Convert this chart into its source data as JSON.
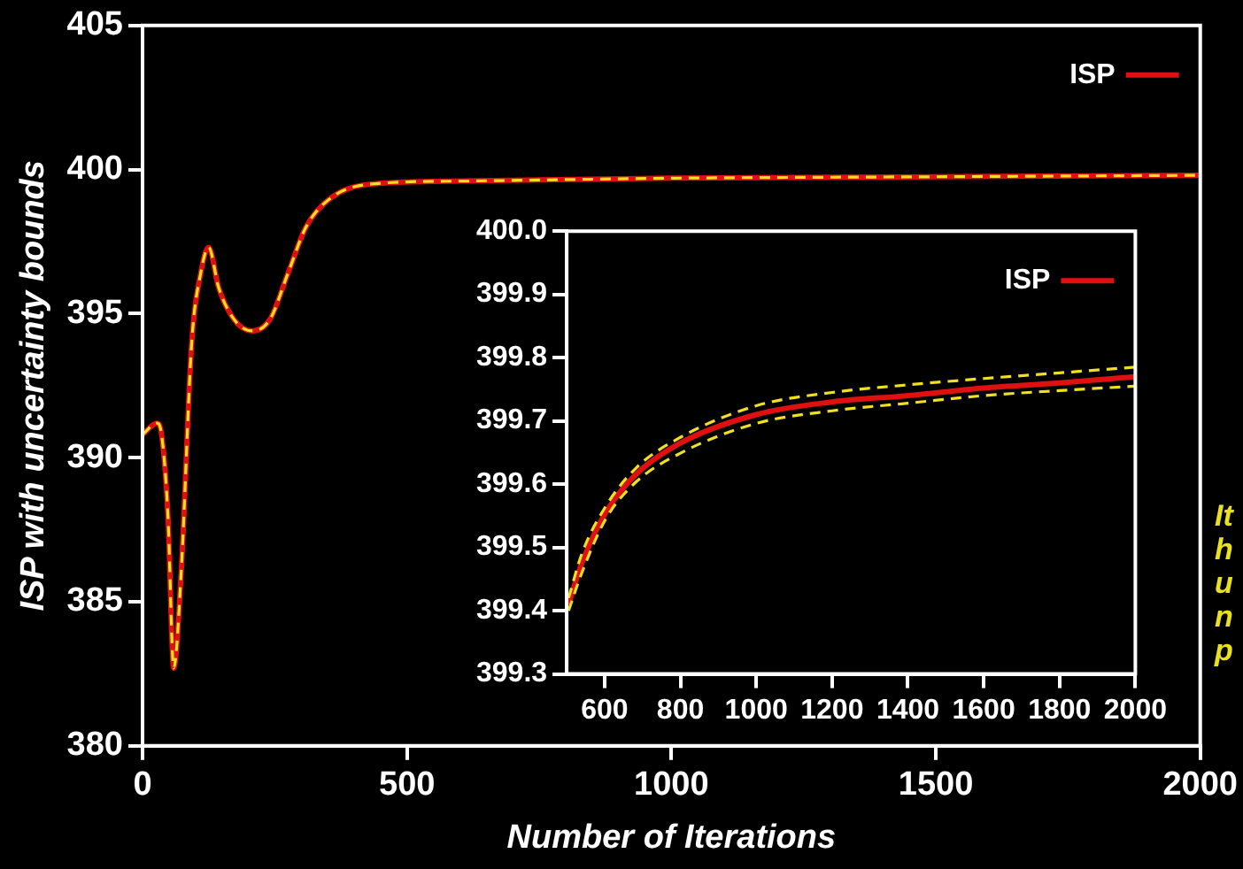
{
  "chart_data": [
    {
      "type": "line",
      "xlabel": "Number of Iterations",
      "ylabel": "ISP with uncertainty bounds",
      "xlim": [
        0,
        2000
      ],
      "ylim": [
        380,
        405
      ],
      "xticks": [
        0,
        500,
        1000,
        1500,
        2000
      ],
      "yticks": [
        380,
        385,
        390,
        395,
        400,
        405
      ],
      "grid": false,
      "legend": "top right",
      "marker": "none",
      "x": [
        0,
        27,
        36,
        48,
        59,
        73,
        93,
        110,
        125,
        144,
        173,
        207,
        241,
        275,
        309,
        355,
        434,
        604,
        1000,
        1500,
        2000
      ],
      "series": [
        {
          "name": "ISP",
          "color": "#e01010",
          "line_style": "solid",
          "values": [
            390.8,
            391.2,
            390.8,
            388.0,
            382.7,
            386.0,
            394.0,
            396.4,
            397.3,
            395.9,
            394.8,
            394.4,
            394.8,
            396.4,
            398.0,
            399.0,
            399.5,
            399.6,
            399.7,
            399.75,
            399.8
          ]
        },
        {
          "color": "#f0e020",
          "line_style": "dashed",
          "values": [
            390.8,
            391.2,
            390.8,
            388.0,
            382.7,
            386.0,
            394.0,
            396.4,
            397.3,
            395.9,
            394.8,
            394.4,
            394.8,
            396.4,
            398.0,
            399.0,
            399.5,
            399.6,
            399.7,
            399.75,
            399.8
          ]
        }
      ],
      "annotations": [
        "It",
        "h",
        "u",
        "n",
        "p"
      ]
    },
    {
      "type": "line",
      "xlim": [
        500,
        2000
      ],
      "ylim": [
        399.3,
        400.0
      ],
      "xticks": [
        600,
        800,
        1000,
        1200,
        1400,
        1600,
        1800,
        2000
      ],
      "yticks": [
        {
          "value": 399.3,
          "label": "399.3"
        },
        {
          "value": 399.4,
          "label": "399.4"
        },
        {
          "value": 399.5,
          "label": "399.5"
        },
        {
          "value": 399.6,
          "label": "399.6"
        },
        {
          "value": 399.7,
          "label": "399.7"
        },
        {
          "value": 399.8,
          "label": "399.8"
        },
        {
          "value": 399.9,
          "label": "399.9"
        },
        {
          "value": 400.0,
          "label": "400.0"
        }
      ],
      "grid": false,
      "legend": "top right",
      "marker": "none",
      "x": [
        505,
        540,
        603,
        682,
        800,
        1000,
        1200,
        1400,
        1600,
        1800,
        2000
      ],
      "series": [
        {
          "name": "ISP",
          "color": "#e01010",
          "line_style": "solid",
          "values": [
            399.41,
            399.475,
            399.555,
            399.615,
            399.665,
            399.71,
            399.73,
            399.74,
            399.752,
            399.76,
            399.77
          ]
        },
        {
          "color": "#f0e020",
          "line_style": "dashed",
          "values": [
            399.42,
            399.49,
            399.565,
            399.625,
            399.674,
            399.724,
            399.745,
            399.757,
            399.767,
            399.776,
            399.785
          ]
        },
        {
          "color": "#f0e020",
          "line_style": "dashed",
          "values": [
            399.4,
            399.46,
            399.545,
            399.603,
            399.649,
            399.696,
            399.716,
            399.728,
            399.74,
            399.748,
            399.755
          ]
        }
      ]
    }
  ]
}
